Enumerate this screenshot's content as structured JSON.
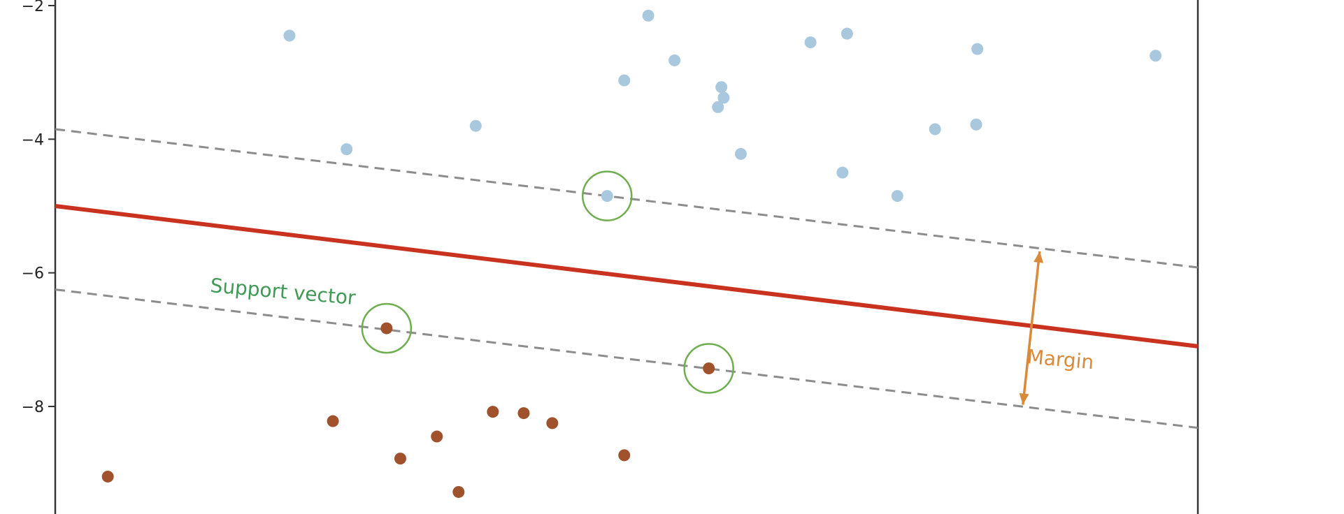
{
  "chart_data": {
    "type": "scatter",
    "y_ticks": [
      "−2",
      "−4",
      "−6",
      "−8"
    ],
    "y_tick_values": [
      -2,
      -4,
      -6,
      -8
    ],
    "ylim": [
      -9.8,
      -1.9
    ],
    "xlim": [
      0,
      1
    ],
    "grid": false,
    "x_ticks_visible": false,
    "series": [
      {
        "color": "#a9c8de",
        "points": [
          [
            0.205,
            -2.45
          ],
          [
            0.255,
            -4.15
          ],
          [
            0.368,
            -3.8
          ],
          [
            0.519,
            -2.15
          ],
          [
            0.498,
            -3.12
          ],
          [
            0.542,
            -2.82
          ],
          [
            0.583,
            -3.22
          ],
          [
            0.585,
            -3.38
          ],
          [
            0.58,
            -3.52
          ],
          [
            0.6,
            -4.22
          ],
          [
            0.661,
            -2.55
          ],
          [
            0.693,
            -2.42
          ],
          [
            0.689,
            -4.5
          ],
          [
            0.737,
            -4.85
          ],
          [
            0.77,
            -3.85
          ],
          [
            0.807,
            -2.65
          ],
          [
            0.806,
            -3.78
          ],
          [
            0.963,
            -2.75
          ],
          [
            0.483,
            -4.85
          ]
        ]
      },
      {
        "color": "#a0522d",
        "points": [
          [
            0.046,
            -9.05
          ],
          [
            0.243,
            -8.22
          ],
          [
            0.302,
            -8.78
          ],
          [
            0.334,
            -8.45
          ],
          [
            0.353,
            -9.28
          ],
          [
            0.383,
            -8.08
          ],
          [
            0.41,
            -8.1
          ],
          [
            0.435,
            -8.25
          ],
          [
            0.498,
            -8.73
          ],
          [
            0.29,
            -6.83
          ],
          [
            0.572,
            -7.43
          ]
        ]
      }
    ],
    "decision_boundary": {
      "color": "#c8321e",
      "y_at_xmin": -5.0,
      "y_at_xmax": -7.1
    },
    "margin_lines": {
      "color": "#8c8c8c",
      "upper": {
        "y_at_xmin": -3.85,
        "y_at_xmax": -5.92
      },
      "lower": {
        "y_at_xmin": -6.25,
        "y_at_xmax": -8.32
      }
    },
    "support_vectors": {
      "color": "#6fae4f",
      "points": [
        [
          0.483,
          -4.85
        ],
        [
          0.29,
          -6.83
        ],
        [
          0.572,
          -7.43
        ]
      ]
    },
    "annotations": {
      "support_vector_label": "Support vector",
      "support_vector_color": "#3f9a55",
      "margin_label": "Margin",
      "margin_color": "#d98a3a",
      "margin_arrow_x": 0.853
    }
  }
}
